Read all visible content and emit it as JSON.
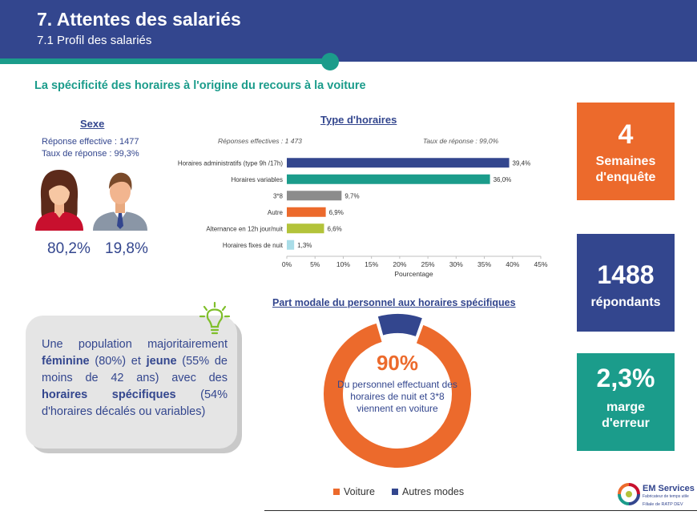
{
  "header": {
    "title": "7. Attentes des salariés",
    "subtitle": "7.1 Profil des salariés"
  },
  "section_title": "La spécificité des horaires à l'origine du recours à la voiture",
  "sexe": {
    "title": "Sexe",
    "reponse_effective": "Réponse effective : 1477",
    "taux_reponse": "Taux de réponse : 99,3%",
    "female_pct": "80,2%",
    "male_pct": "19,8%",
    "icons": [
      "woman-icon",
      "man-icon"
    ]
  },
  "chart_data": {
    "type": "bar",
    "orientation": "horizontal",
    "title": "Type d'horaires",
    "note_left": "Réponses effectives : 1 473",
    "note_right": "Taux de réponse : 99,0%",
    "categories": [
      "Horaires administratifs (type 9h /17h)",
      "Horaires variables",
      "3*8",
      "Autre",
      "Alternance en 12h jour/nuit",
      "Horaires fixes de nuit"
    ],
    "values": [
      39.4,
      36.0,
      9.7,
      6.9,
      6.6,
      1.3
    ],
    "data_labels": [
      "39,4%",
      "36,0%",
      "9,7%",
      "6,9%",
      "6,6%",
      "1,3%"
    ],
    "colors": [
      "#33468e",
      "#1b9c8b",
      "#8c8c8c",
      "#ec6a2c",
      "#b3c33a",
      "#a9dde8"
    ],
    "xlim": [
      0,
      45
    ],
    "xticks": [
      "0%",
      "5%",
      "10%",
      "15%",
      "20%",
      "25%",
      "30%",
      "35%",
      "40%",
      "45%"
    ],
    "xlabel": "Pourcentage",
    "ylabel": "",
    "grid": false
  },
  "kpis": [
    {
      "value": "4",
      "label": "Semaines d'enquête",
      "line1": "Semaines",
      "line2": "d'enquête",
      "color": "#ec6a2c"
    },
    {
      "value": "1488",
      "label": "répondants",
      "line1": "répondants",
      "line2": "",
      "color": "#33468e"
    },
    {
      "value": "2,3%",
      "label": "marge d'erreur",
      "line1": "marge",
      "line2": "d'erreur",
      "color": "#1b9c8b"
    }
  ],
  "insight": {
    "t1": "Une population majoritairement ",
    "b1": "féminine",
    "t2": " (80%) et ",
    "b2": "jeune",
    "t3": " (55% de moins de 42 ans) avec des ",
    "b3": "horaires spécifiques",
    "t4": " (54% d'horaires décalés ou variables)",
    "icon": "lightbulb-icon"
  },
  "donut": {
    "title": "Part modale du personnel aux horaires spécifiques",
    "center_value": "90%",
    "center_text": "Du personnel effectuant des horaires de nuit et 3*8 viennent en voiture",
    "slices": [
      {
        "name": "Voiture",
        "value": 90,
        "color": "#ec6a2c"
      },
      {
        "name": "Autres modes",
        "value": 10,
        "color": "#33468e"
      }
    ],
    "legend": [
      "Voiture",
      "Autres modes"
    ]
  },
  "logo": {
    "name": "EM Services",
    "tagline": "Fabricateur de temps utile",
    "ratp": "Filiale de RATP DEV",
    "icon": "em-services-logo-icon"
  }
}
